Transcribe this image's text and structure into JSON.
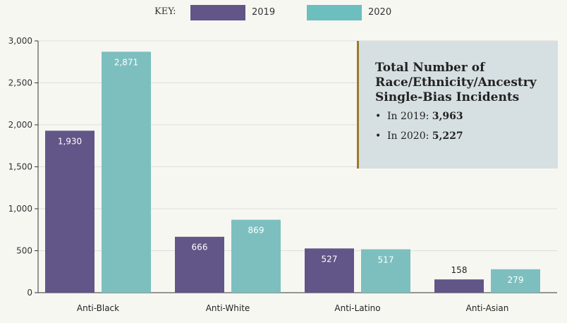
{
  "legend": {
    "key_label": "KEY:",
    "items": [
      {
        "label": "2019",
        "color": "#625587"
      },
      {
        "label": "2020",
        "color": "#6dbfbf"
      }
    ]
  },
  "callout": {
    "title": "Total Number of Race/Ethnicity/Ancestry Single-Bias Incidents",
    "items": [
      {
        "prefix": "In 2019: ",
        "value": "3,963"
      },
      {
        "prefix": "In 2020: ",
        "value": "5,227"
      }
    ]
  },
  "chart_data": {
    "type": "bar",
    "categories": [
      "Anti-Black",
      "Anti-White",
      "Anti-Latino",
      "Anti-Asian"
    ],
    "series": [
      {
        "name": "2019",
        "color": "#625587",
        "values": [
          1930,
          666,
          527,
          158
        ]
      },
      {
        "name": "2020",
        "color": "#7dbfbf",
        "values": [
          2871,
          869,
          517,
          279
        ]
      }
    ],
    "data_labels": [
      [
        "1,930",
        "666",
        "527",
        "158"
      ],
      [
        "2,871",
        "869",
        "517",
        "279"
      ]
    ],
    "yticks": [
      "0",
      "500",
      "1,000",
      "1,500",
      "2,000",
      "2,500",
      "3,000"
    ],
    "ylim": [
      0,
      3000
    ],
    "grid": true,
    "legend_position": "top-center",
    "title": "",
    "xlabel": "",
    "ylabel": ""
  }
}
